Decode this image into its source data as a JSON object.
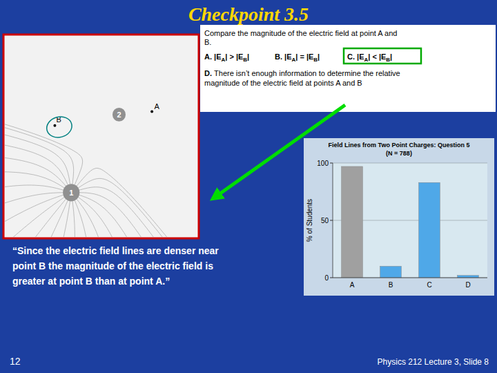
{
  "chart_data": {
    "type": "bar",
    "title": "Field Lines from Two Point Charges:  Question 5",
    "subtitle": "(N = 788)",
    "y_label": "% of Students",
    "categories": [
      "A",
      "B",
      "C",
      "D"
    ],
    "values": [
      97,
      10,
      83,
      2
    ],
    "colors": [
      "#a0a0a0",
      "#4fa8e8",
      "#4fa8e8",
      "#4fa8e8"
    ],
    "ylim": [
      0,
      100
    ],
    "yticks": [
      0,
      50,
      100
    ],
    "grid": true,
    "annotations": [
      "Checkpoint 3.5",
      "Compare the magnitude of the electric field at point A and",
      "B.",
      [
        "A.",
        "|E",
        "A",
        "| > |E",
        "B",
        "|"
      ],
      [
        "B.",
        "|E",
        "A",
        "| = |E",
        "B",
        "|"
      ],
      [
        "C.",
        "|E",
        "A",
        "| < |E",
        "B",
        "|"
      ],
      [
        "D.",
        "There isn’t enough information to determine the relative"
      ],
      "magnitude of the electric field at points A and B",
      "“Since the electric field lines are denser near\npoint B the magnitude of the electric field is\ngreater at point B than at point A.”",
      "12",
      "Physics 212  Lecture 3, Slide 8",
      "1",
      "2",
      "A",
      "B"
    ]
  }
}
